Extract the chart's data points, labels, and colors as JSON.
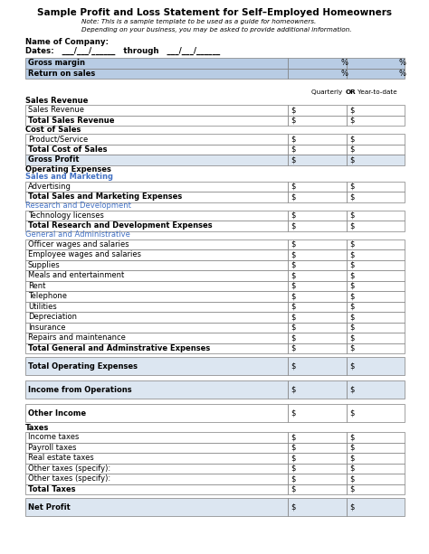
{
  "title": "Sample Profit and Loss Statement for Self–Employed Homeowners",
  "note_line1": "Note: This is a sample template to be used as a guide for homeowners.",
  "note_line2": "Depending on your business, you may be asked to provide additional information.",
  "name_of_company_label": "Name of Company:",
  "dates_label": "Dates:   ___/___/______   through   ___/___/______",
  "sections": [
    {
      "type": "header_rows",
      "rows": [
        {
          "label": "Gross margin",
          "val": "%"
        },
        {
          "label": "Return on sales",
          "val": "%"
        }
      ]
    },
    {
      "type": "quarterly_label"
    },
    {
      "type": "section",
      "header": "Sales Revenue",
      "header_bold": true,
      "header_color": "black",
      "rows": [
        {
          "label": "Sales Revenue",
          "bold": false,
          "shaded": false,
          "dollar": true
        },
        {
          "label": "Total Sales Revenue",
          "bold": true,
          "shaded": false,
          "dollar": true
        }
      ]
    },
    {
      "type": "section",
      "header": "Cost of Sales",
      "header_bold": true,
      "header_color": "black",
      "rows": [
        {
          "label": "Product/Service",
          "bold": false,
          "shaded": false,
          "dollar": true
        },
        {
          "label": "Total Cost of Sales",
          "bold": true,
          "shaded": false,
          "dollar": true
        }
      ]
    },
    {
      "type": "section",
      "header": null,
      "rows": [
        {
          "label": "Gross Profit",
          "bold": true,
          "shaded": true,
          "dollar": true
        }
      ]
    },
    {
      "type": "section",
      "header": "Operating Expenses",
      "header_bold": true,
      "header_color": "black",
      "subheader": "Sales and Marketing",
      "subheader_color": "#4472c4",
      "rows": [
        {
          "label": "Advertising",
          "bold": false,
          "shaded": false,
          "dollar": true
        },
        {
          "label": "Total Sales and Marketing Expenses",
          "bold": true,
          "shaded": false,
          "dollar": true
        }
      ]
    },
    {
      "type": "section",
      "header": "Research and Development",
      "header_bold": false,
      "header_color": "#4472c4",
      "rows": [
        {
          "label": "Technology licenses",
          "bold": false,
          "shaded": false,
          "dollar": true
        },
        {
          "label": "Total Research and Development Expenses",
          "bold": true,
          "shaded": false,
          "dollar": true
        }
      ]
    },
    {
      "type": "section",
      "header": "General and Administrative",
      "header_bold": false,
      "header_color": "#4472c4",
      "rows": [
        {
          "label": "Officer wages and salaries",
          "bold": false,
          "shaded": false,
          "dollar": true
        },
        {
          "label": "Employee wages and salaries",
          "bold": false,
          "shaded": false,
          "dollar": true
        },
        {
          "label": "Supplies",
          "bold": false,
          "shaded": false,
          "dollar": true
        },
        {
          "label": "Meals and entertainment",
          "bold": false,
          "shaded": false,
          "dollar": true
        },
        {
          "label": "Rent",
          "bold": false,
          "shaded": false,
          "dollar": true
        },
        {
          "label": "Telephone",
          "bold": false,
          "shaded": false,
          "dollar": true
        },
        {
          "label": "Utilities",
          "bold": false,
          "shaded": false,
          "dollar": true
        },
        {
          "label": "Depreciation",
          "bold": false,
          "shaded": false,
          "dollar": true
        },
        {
          "label": "Insurance",
          "bold": false,
          "shaded": false,
          "dollar": true
        },
        {
          "label": "Repairs and maintenance",
          "bold": false,
          "shaded": false,
          "dollar": true
        },
        {
          "label": "Total General and Adminstrative Expenses",
          "bold": true,
          "shaded": false,
          "dollar": true
        }
      ]
    },
    {
      "type": "spacer_row",
      "label": "Total Operating Expenses",
      "bold": true,
      "shaded": true,
      "dollar": true
    },
    {
      "type": "spacer_row",
      "label": "Income from Operations",
      "bold": true,
      "shaded": true,
      "dollar": true
    },
    {
      "type": "spacer_row",
      "label": "Other Income",
      "bold": true,
      "shaded": false,
      "dollar": true
    },
    {
      "type": "section",
      "header": "Taxes",
      "header_bold": true,
      "header_color": "black",
      "rows": [
        {
          "label": "Income taxes",
          "bold": false,
          "shaded": false,
          "dollar": true
        },
        {
          "label": "Payroll taxes",
          "bold": false,
          "shaded": false,
          "dollar": true
        },
        {
          "label": "Real estate taxes",
          "bold": false,
          "shaded": false,
          "dollar": true
        },
        {
          "label": "Other taxes (specify):",
          "bold": false,
          "shaded": false,
          "dollar": true
        },
        {
          "label": "Other taxes (specify):",
          "bold": false,
          "shaded": false,
          "dollar": true
        },
        {
          "label": "Total Taxes",
          "bold": true,
          "shaded": false,
          "dollar": true
        }
      ]
    },
    {
      "type": "spacer_row",
      "label": "Net Profit",
      "bold": true,
      "shaded": true,
      "dollar": true
    }
  ],
  "header_bg": "#b8cce4",
  "shaded_bg": "#dce6f1",
  "col_shaded": "#dce6f1",
  "border_color": "#7f7f7f",
  "background_color": "#ffffff"
}
